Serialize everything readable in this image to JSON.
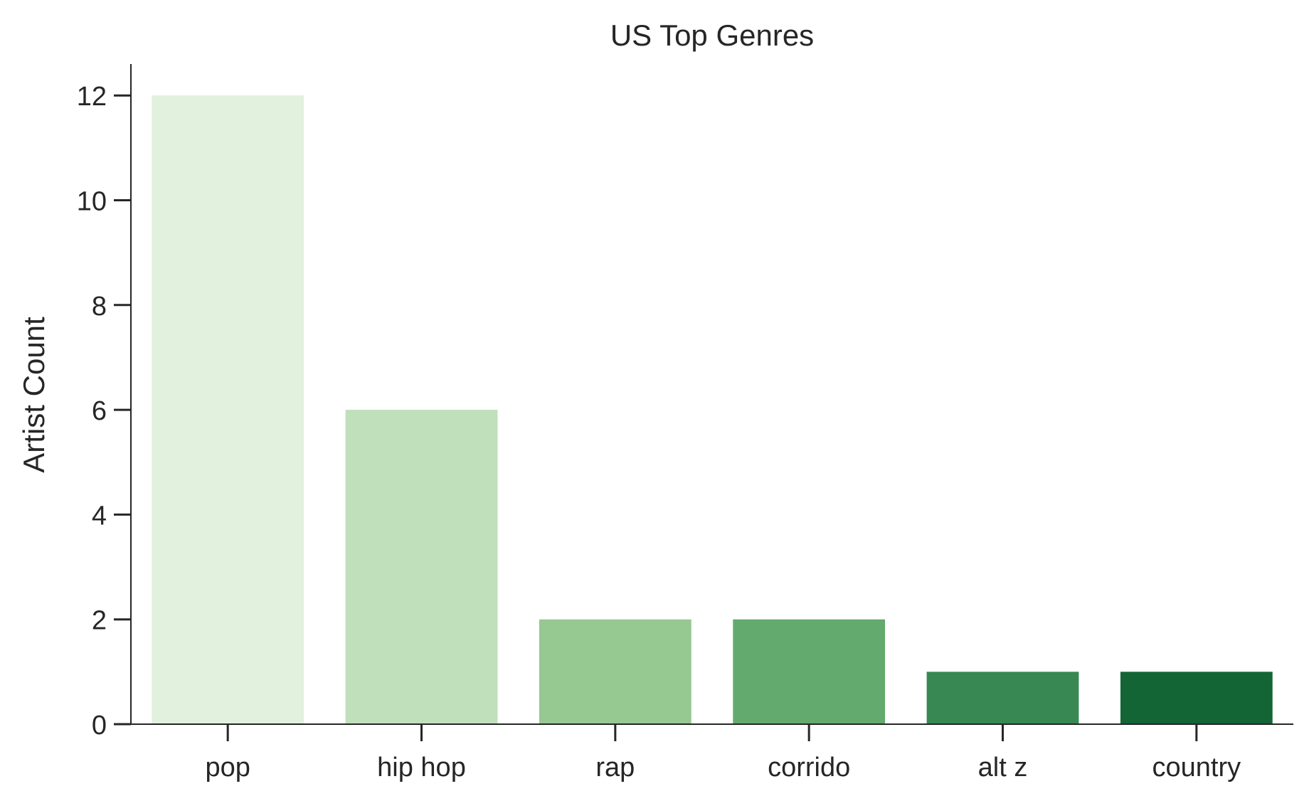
{
  "chart_data": {
    "type": "bar",
    "title": "US Top Genres",
    "xlabel": "",
    "ylabel": "Artist Count",
    "categories": [
      "pop",
      "hip hop",
      "rap",
      "corrido",
      "alt z",
      "country"
    ],
    "values": [
      12,
      6,
      2,
      2,
      1,
      1
    ],
    "colors": [
      "#e2f0de",
      "#c0dfbb",
      "#96c891",
      "#63aa6e",
      "#378853",
      "#136535"
    ],
    "ylim": [
      0,
      12.6
    ],
    "yticks": [
      "0",
      "2",
      "4",
      "6",
      "8",
      "10",
      "12"
    ],
    "grid": false,
    "legend": "none"
  }
}
